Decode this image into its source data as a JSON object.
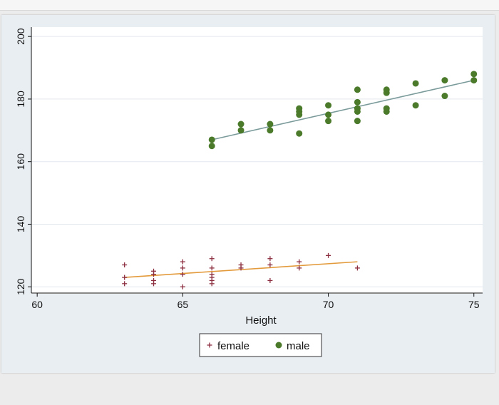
{
  "colors": {
    "female": "#8b2d3e",
    "male": "#4a7a2a",
    "female_fit": "#e39a3b",
    "male_fit": "#7b9b9b",
    "grid": "#e3e8ee",
    "plot_bg": "#ffffff",
    "outer_bg": "#e9eef3"
  },
  "chart_data": {
    "type": "scatter",
    "title": "",
    "xlabel": "Height",
    "ylabel": "",
    "xlim": [
      59.8,
      75.3
    ],
    "ylim": [
      118,
      203
    ],
    "xticks": [
      60,
      65,
      70,
      75
    ],
    "yticks": [
      120,
      140,
      160,
      180,
      200
    ],
    "xtick_labels": [
      "60",
      "65",
      "70",
      "75"
    ],
    "ytick_labels": [
      "120",
      "140",
      "160",
      "180",
      "200"
    ],
    "grid": "horizontal",
    "legend_position": "bottom",
    "series": [
      {
        "name": "female",
        "marker": "plus",
        "points": [
          [
            63,
            127
          ],
          [
            63,
            123
          ],
          [
            63,
            121
          ],
          [
            64,
            125
          ],
          [
            64,
            124
          ],
          [
            64,
            122
          ],
          [
            64,
            121
          ],
          [
            65,
            128
          ],
          [
            65,
            126
          ],
          [
            65,
            124
          ],
          [
            65,
            120
          ],
          [
            66,
            129
          ],
          [
            66,
            126
          ],
          [
            66,
            124
          ],
          [
            66,
            123
          ],
          [
            66,
            122
          ],
          [
            66,
            121
          ],
          [
            67,
            127
          ],
          [
            67,
            126
          ],
          [
            68,
            129
          ],
          [
            68,
            127
          ],
          [
            68,
            122
          ],
          [
            69,
            128
          ],
          [
            69,
            126
          ],
          [
            70,
            130
          ],
          [
            71,
            126
          ]
        ],
        "fit": [
          [
            63,
            123
          ],
          [
            71,
            128
          ]
        ]
      },
      {
        "name": "male",
        "marker": "circle",
        "points": [
          [
            66,
            167
          ],
          [
            66,
            165
          ],
          [
            67,
            172
          ],
          [
            67,
            170
          ],
          [
            68,
            172
          ],
          [
            68,
            170
          ],
          [
            69,
            177
          ],
          [
            69,
            176
          ],
          [
            69,
            175
          ],
          [
            69,
            169
          ],
          [
            70,
            178
          ],
          [
            70,
            175
          ],
          [
            70,
            173
          ],
          [
            71,
            183
          ],
          [
            71,
            179
          ],
          [
            71,
            177
          ],
          [
            71,
            176
          ],
          [
            71,
            173
          ],
          [
            72,
            183
          ],
          [
            72,
            182
          ],
          [
            72,
            177
          ],
          [
            72,
            176
          ],
          [
            73,
            185
          ],
          [
            73,
            178
          ],
          [
            74,
            186
          ],
          [
            74,
            181
          ],
          [
            75,
            188
          ],
          [
            75,
            186
          ]
        ],
        "fit": [
          [
            66,
            167
          ],
          [
            75,
            186
          ]
        ]
      }
    ]
  }
}
